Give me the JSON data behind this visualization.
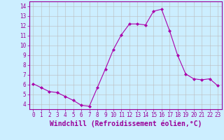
{
  "x": [
    0,
    1,
    2,
    3,
    4,
    5,
    6,
    7,
    8,
    9,
    10,
    11,
    12,
    13,
    14,
    15,
    16,
    17,
    18,
    19,
    20,
    21,
    22,
    23
  ],
  "y": [
    6.1,
    5.7,
    5.3,
    5.2,
    4.8,
    4.4,
    3.9,
    3.8,
    5.7,
    7.6,
    9.6,
    11.1,
    12.2,
    12.2,
    12.1,
    13.5,
    13.7,
    11.5,
    9.0,
    7.1,
    6.6,
    6.5,
    6.6,
    5.9
  ],
  "line_color": "#aa00aa",
  "marker": "D",
  "markersize": 2,
  "linewidth": 0.8,
  "xlabel": "Windchill (Refroidissement éolien,°C)",
  "xlabel_fontsize": 7,
  "ylabel_ticks": [
    4,
    5,
    6,
    7,
    8,
    9,
    10,
    11,
    12,
    13,
    14
  ],
  "xticks": [
    0,
    1,
    2,
    3,
    4,
    5,
    6,
    7,
    8,
    9,
    10,
    11,
    12,
    13,
    14,
    15,
    16,
    17,
    18,
    19,
    20,
    21,
    22,
    23
  ],
  "xlim": [
    -0.5,
    23.5
  ],
  "ylim": [
    3.5,
    14.5
  ],
  "bg_color": "#cceeff",
  "grid_color": "#bbbbbb",
  "tick_color": "#990099",
  "tick_fontsize": 5.5
}
